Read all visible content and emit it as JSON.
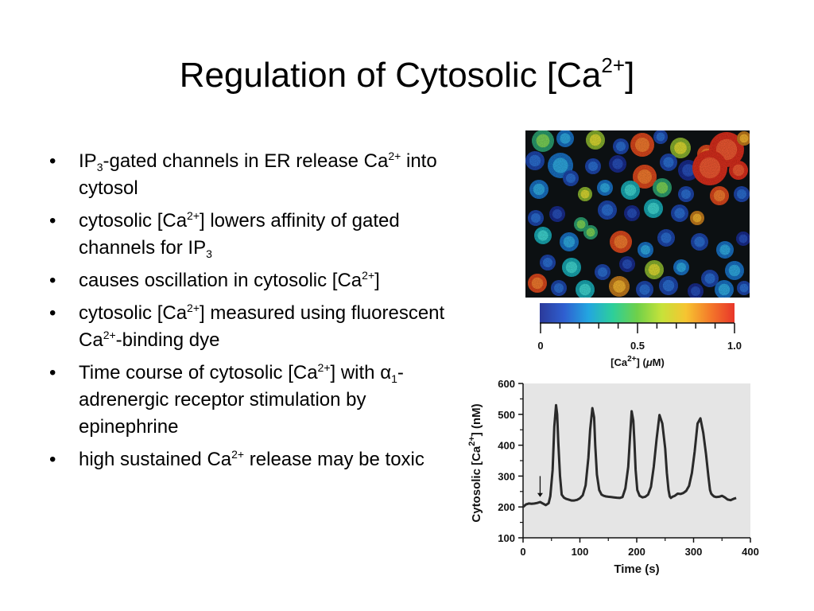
{
  "slide": {
    "title_main": "Regulation of Cytosolic [Ca",
    "title_sup": "2+",
    "title_end": "]"
  },
  "bullets": [
    {
      "parts": [
        {
          "t": "IP"
        },
        {
          "t": "3",
          "sub": true
        },
        {
          "t": "-gated channels in ER release Ca"
        },
        {
          "t": "2+",
          "sup": true
        },
        {
          "t": " into cytosol"
        }
      ]
    },
    {
      "parts": [
        {
          "t": "cytosolic [Ca"
        },
        {
          "t": "2+",
          "sup": true
        },
        {
          "t": "] lowers affinity of gated channels for IP"
        },
        {
          "t": "3",
          "sub": true
        }
      ]
    },
    {
      "parts": [
        {
          "t": "causes oscillation in cytosolic [Ca"
        },
        {
          "t": "2+",
          "sup": true
        },
        {
          "t": "]"
        }
      ]
    },
    {
      "parts": [
        {
          "t": "cytosolic [Ca"
        },
        {
          "t": "2+",
          "sup": true
        },
        {
          "t": "] measured using fluorescent Ca"
        },
        {
          "t": "2+",
          "sup": true
        },
        {
          "t": "-binding dye"
        }
      ]
    },
    {
      "parts": [
        {
          "t": "Time course of cytosolic [Ca"
        },
        {
          "t": "2+",
          "sup": true
        },
        {
          "t": "] with α"
        },
        {
          "t": "1",
          "sub": true
        },
        {
          "t": "-adrenergic receptor stimulation by epinephrine"
        }
      ]
    },
    {
      "parts": [
        {
          "t": "high sustained Ca"
        },
        {
          "t": "2+",
          "sup": true
        },
        {
          "t": " release may be toxic"
        }
      ]
    }
  ],
  "colorbar": {
    "ticks": [
      "0",
      "0.5",
      "1.0"
    ],
    "label_main": "[Ca",
    "label_sup": "2+",
    "label_end": "] (",
    "label_mu": "μ",
    "label_unit": "M)",
    "colors": [
      "#2b3a9a",
      "#2f5fd0",
      "#23a6e0",
      "#2dcf9a",
      "#6fd04a",
      "#c6e23a",
      "#f6c531",
      "#f47a2a",
      "#e8362a"
    ]
  },
  "chart_data": {
    "type": "line",
    "title": "",
    "xlabel": "Time (s)",
    "ylabel_main": "Cytosolic [Ca",
    "ylabel_sup": "2+",
    "ylabel_end": "] (nM)",
    "xlim": [
      0,
      400
    ],
    "ylim": [
      100,
      600
    ],
    "x_ticks": [
      0,
      100,
      200,
      300,
      400
    ],
    "y_ticks": [
      100,
      200,
      300,
      400,
      500,
      600
    ],
    "background": "#e5e5e5",
    "line_color": "#2a2a2a",
    "annotation_arrow_x": 30,
    "series": [
      {
        "name": "",
        "x": [
          0,
          5,
          10,
          15,
          20,
          25,
          30,
          35,
          40,
          45,
          48,
          52,
          55,
          58,
          60,
          62,
          65,
          68,
          72,
          76,
          80,
          85,
          90,
          95,
          100,
          105,
          110,
          115,
          118,
          122,
          125,
          127,
          130,
          134,
          138,
          142,
          146,
          150,
          155,
          160,
          165,
          170,
          175,
          180,
          185,
          188,
          191,
          194,
          196,
          198,
          201,
          205,
          210,
          215,
          220,
          225,
          230,
          235,
          240,
          245,
          250,
          253,
          256,
          258,
          260,
          263,
          267,
          272,
          277,
          282,
          287,
          292,
          297,
          302,
          307,
          312,
          317,
          322,
          326,
          329,
          331,
          333,
          336,
          340,
          345,
          350,
          355,
          360,
          365,
          370,
          375
        ],
        "values": [
          200,
          208,
          211,
          210,
          211,
          213,
          216,
          211,
          206,
          212,
          235,
          320,
          460,
          530,
          500,
          410,
          300,
          240,
          230,
          226,
          224,
          221,
          221,
          223,
          228,
          238,
          270,
          360,
          450,
          520,
          490,
          400,
          305,
          255,
          240,
          236,
          234,
          233,
          232,
          231,
          230,
          229,
          232,
          260,
          330,
          420,
          510,
          480,
          410,
          320,
          255,
          236,
          231,
          233,
          240,
          265,
          330,
          420,
          498,
          470,
          390,
          310,
          255,
          234,
          229,
          233,
          236,
          243,
          242,
          245,
          252,
          268,
          310,
          380,
          470,
          487,
          440,
          370,
          300,
          255,
          243,
          239,
          234,
          232,
          233,
          236,
          231,
          224,
          222,
          226,
          229
        ]
      }
    ]
  }
}
